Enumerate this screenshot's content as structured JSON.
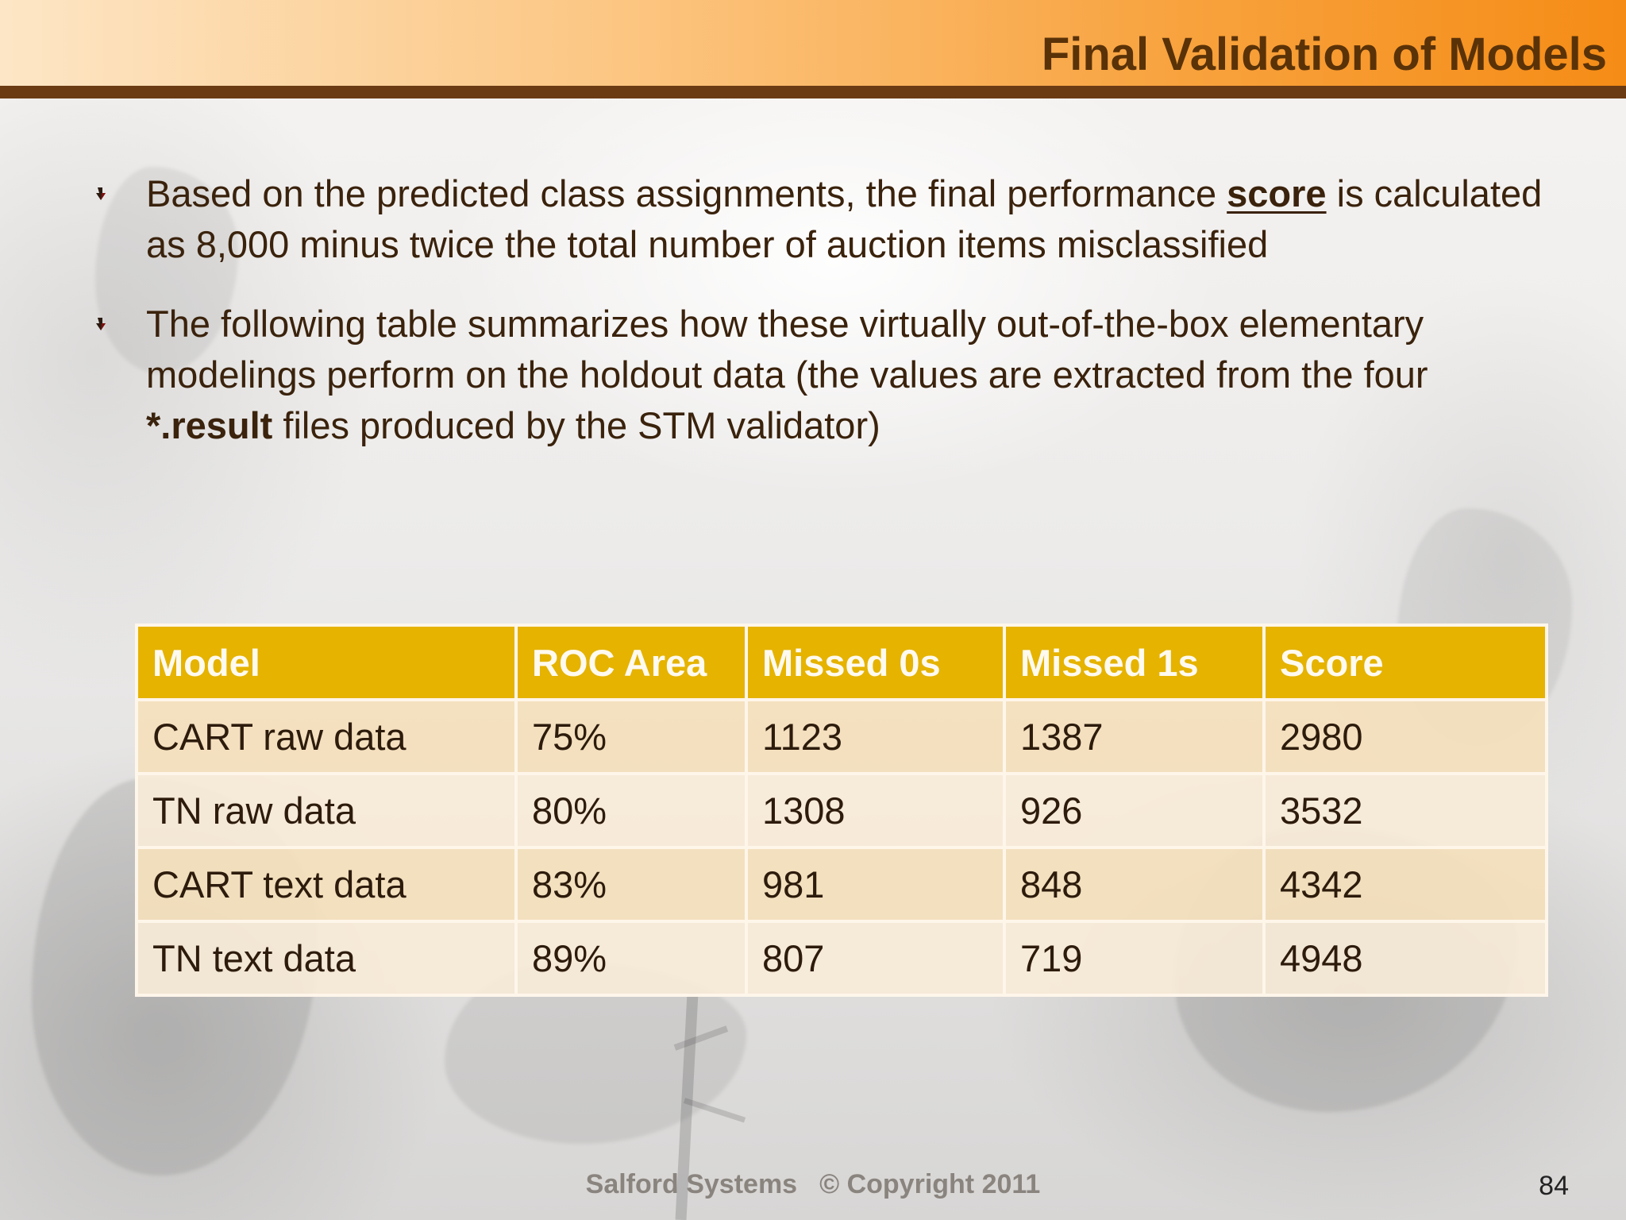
{
  "slide": {
    "title": "Final Validation of Models",
    "bullets": [
      {
        "parts": [
          "Based on the predicted class assignments, the final performance ",
          "score",
          " is calculated as 8,000 minus twice the total number of auction items misclassified"
        ]
      },
      {
        "parts": [
          "The following table summarizes how these virtually out-of-the-box elementary modelings perform on the holdout data (the values are extracted from the four ",
          "*.result",
          " files produced by the STM validator)"
        ]
      }
    ]
  },
  "colors": {
    "header_accent": "#f58c16",
    "header_rule": "#6b3b14",
    "table_header": "#e5b300",
    "table_row_odd": "#f4e0bc",
    "table_row_even": "#f8ebd8"
  },
  "icons": {
    "bullet": "down-arrow-bullet-icon"
  },
  "table": {
    "columns": [
      "Model",
      "ROC Area",
      "Missed 0s",
      "Missed 1s",
      "Score"
    ],
    "rows": [
      [
        "CART raw data",
        "75%",
        "1123",
        "1387",
        "2980"
      ],
      [
        "TN raw data",
        "80%",
        "1308",
        "926",
        "3532"
      ],
      [
        "CART text data",
        "83%",
        "981",
        "848",
        "4342"
      ],
      [
        "TN text data",
        "89%",
        "807",
        "719",
        "4948"
      ]
    ]
  },
  "footer": {
    "company": "Salford Systems",
    "copyright": "© Copyright 2011",
    "page_number": "84"
  }
}
